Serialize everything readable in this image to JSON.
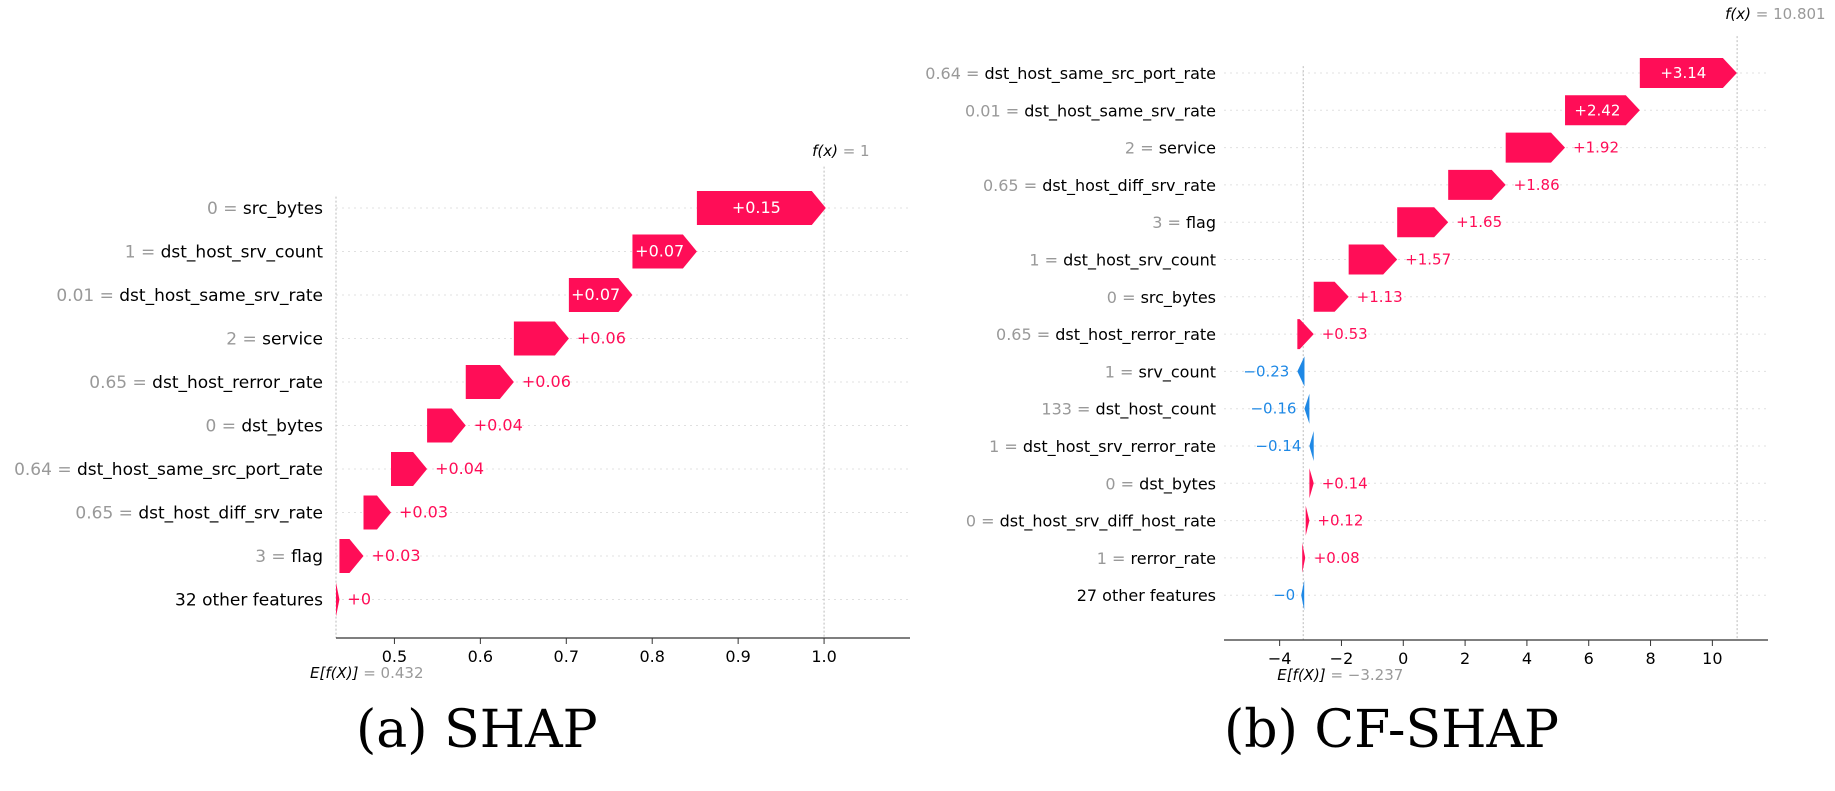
{
  "colors": {
    "positive": "#ff0d57",
    "negative": "#1e88e5",
    "value_text": "#999999",
    "feature_text": "#000000"
  },
  "captions": {
    "a": "(a) SHAP",
    "b": "(b) CF-SHAP"
  },
  "chart_data": [
    {
      "type": "waterfall",
      "base_label": "E[f(X)]",
      "base_value": 0.432,
      "base_value_label": " = 0.432",
      "output_label": "f(x)",
      "output_value": 1,
      "output_value_label": " = 1",
      "xlim": [
        0.432,
        1.1
      ],
      "xticks": [
        0.5,
        0.6,
        0.7,
        0.8,
        0.9,
        1.0
      ],
      "xtick_labels": [
        "0.5",
        "0.6",
        "0.7",
        "0.8",
        "0.9",
        "1.0"
      ],
      "bars": [
        {
          "value_label": "0",
          "feature": "src_bytes",
          "shap": 0.15,
          "text": "+0.15"
        },
        {
          "value_label": "1",
          "feature": "dst_host_srv_count",
          "shap": 0.075,
          "text": "+0.07"
        },
        {
          "value_label": "0.01",
          "feature": "dst_host_same_srv_rate",
          "shap": 0.074,
          "text": "+0.07"
        },
        {
          "value_label": "2",
          "feature": "service",
          "shap": 0.064,
          "text": "+0.06"
        },
        {
          "value_label": "0.65",
          "feature": "dst_host_rerror_rate",
          "shap": 0.056,
          "text": "+0.06"
        },
        {
          "value_label": "0",
          "feature": "dst_bytes",
          "shap": 0.045,
          "text": "+0.04"
        },
        {
          "value_label": "0.64",
          "feature": "dst_host_same_src_port_rate",
          "shap": 0.042,
          "text": "+0.04"
        },
        {
          "value_label": "0.65",
          "feature": "dst_host_diff_srv_rate",
          "shap": 0.032,
          "text": "+0.03"
        },
        {
          "value_label": "3",
          "feature": "flag",
          "shap": 0.028,
          "text": "+0.03"
        },
        {
          "value_label": "",
          "feature": "32 other features",
          "shap": 0.004,
          "text": "+0"
        }
      ]
    },
    {
      "type": "waterfall",
      "base_label": "E[f(X)]",
      "base_value": -3.237,
      "base_value_label": " = −3.237",
      "output_label": "f(x)",
      "output_value": 10.801,
      "output_value_label": " = 10.801",
      "xlim": [
        -5.8,
        11.8
      ],
      "xticks": [
        -4,
        -2,
        0,
        2,
        4,
        6,
        8,
        10
      ],
      "xtick_labels": [
        "−4",
        "−2",
        "0",
        "2",
        "4",
        "6",
        "8",
        "10"
      ],
      "bars": [
        {
          "value_label": "0.64",
          "feature": "dst_host_same_src_port_rate",
          "shap": 3.14,
          "text": "+3.14"
        },
        {
          "value_label": "0.01",
          "feature": "dst_host_same_srv_rate",
          "shap": 2.42,
          "text": "+2.42"
        },
        {
          "value_label": "2",
          "feature": "service",
          "shap": 1.92,
          "text": "+1.92"
        },
        {
          "value_label": "0.65",
          "feature": "dst_host_diff_srv_rate",
          "shap": 1.86,
          "text": "+1.86"
        },
        {
          "value_label": "3",
          "feature": "flag",
          "shap": 1.65,
          "text": "+1.65"
        },
        {
          "value_label": "1",
          "feature": "dst_host_srv_count",
          "shap": 1.57,
          "text": "+1.57"
        },
        {
          "value_label": "0",
          "feature": "src_bytes",
          "shap": 1.13,
          "text": "+1.13"
        },
        {
          "value_label": "0.65",
          "feature": "dst_host_rerror_rate",
          "shap": 0.53,
          "text": "+0.53"
        },
        {
          "value_label": "1",
          "feature": "srv_count",
          "shap": -0.23,
          "text": "−0.23"
        },
        {
          "value_label": "133",
          "feature": "dst_host_count",
          "shap": -0.16,
          "text": "−0.16"
        },
        {
          "value_label": "1",
          "feature": "dst_host_srv_rerror_rate",
          "shap": -0.14,
          "text": "−0.14"
        },
        {
          "value_label": "0",
          "feature": "dst_bytes",
          "shap": 0.14,
          "text": "+0.14"
        },
        {
          "value_label": "0",
          "feature": "dst_host_srv_diff_host_rate",
          "shap": 0.12,
          "text": "+0.12"
        },
        {
          "value_label": "1",
          "feature": "rerror_rate",
          "shap": 0.08,
          "text": "+0.08"
        },
        {
          "value_label": "",
          "feature": "27 other features",
          "shap": -0.0001,
          "text": "−0"
        }
      ]
    }
  ]
}
